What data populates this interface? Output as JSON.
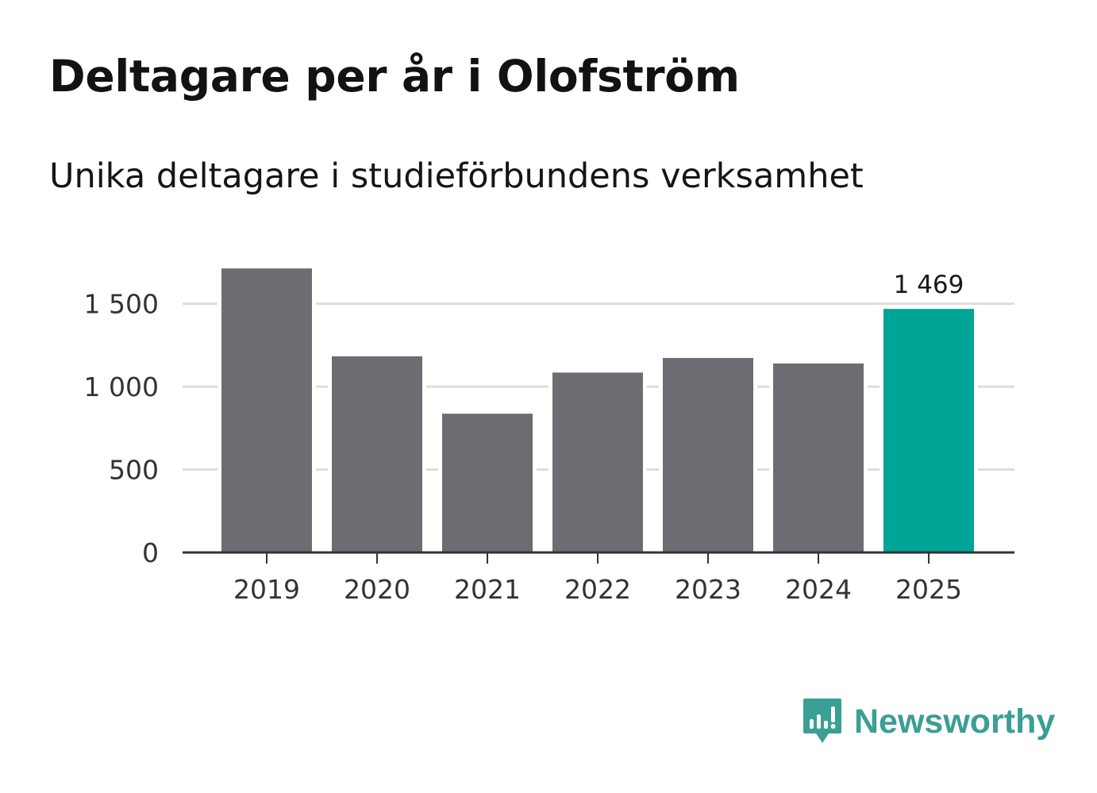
{
  "title": "Deltagare per år i Olofström",
  "subtitle": "Unika deltagare i studieförbundens verksamhet",
  "brand": {
    "name": "Newsworthy",
    "icon": "newsworthy-logo-icon",
    "color": "#3a9f94"
  },
  "chart_data": {
    "type": "bar",
    "title": "Deltagare per år i Olofström",
    "subtitle": "Unika deltagare i studieförbundens verksamhet",
    "xlabel": "",
    "ylabel": "",
    "categories": [
      "2019",
      "2020",
      "2021",
      "2022",
      "2023",
      "2024",
      "2025"
    ],
    "values": [
      1713,
      1183,
      837,
      1085,
      1173,
      1140,
      1469
    ],
    "ylim": [
      0,
      1800
    ],
    "yticks": [
      0,
      500,
      1000,
      1500
    ],
    "ytick_labels": [
      "0",
      "500",
      "1 000",
      "1 500"
    ],
    "grid": true,
    "highlight_index": 6,
    "highlight_label": "1 469",
    "colors": {
      "bar": "#6d6c73",
      "highlight": "#00a598",
      "grid": "#dddddd",
      "axis": "#333333"
    }
  }
}
